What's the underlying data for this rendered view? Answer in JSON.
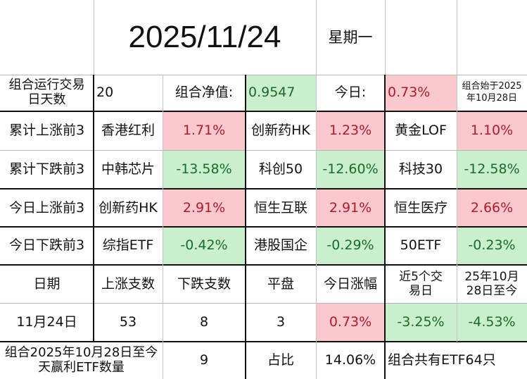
{
  "header": {
    "date": "2025/11/24",
    "weekday": "星期一"
  },
  "summary": {
    "days_label": "组合运行交易日天数",
    "days_value": "20",
    "nav_label": "组合净值:",
    "nav_value": "0.9547",
    "today_label": "今日:",
    "today_value": "0.73%",
    "start_note": "组合始于2025年10月28日"
  },
  "rankings": [
    {
      "label": "累计上涨前3",
      "items": [
        {
          "name": "香港红利",
          "value": "1.71%"
        },
        {
          "name": "创新药HK",
          "value": "1.23%"
        },
        {
          "name": "黄金LOF",
          "value": "1.10%"
        }
      ]
    },
    {
      "label": "累计下跌前3",
      "items": [
        {
          "name": "中韩芯片",
          "value": "-13.58%"
        },
        {
          "name": "科创50",
          "value": "-12.60%"
        },
        {
          "name": "科技30",
          "value": "-12.58%"
        }
      ]
    },
    {
      "label": "今日上涨前3",
      "items": [
        {
          "name": "创新药HK",
          "value": "2.91%"
        },
        {
          "name": "恒生互联",
          "value": "2.91%"
        },
        {
          "name": "恒生医疗",
          "value": "2.66%"
        }
      ]
    },
    {
      "label": "今日下跌前3",
      "items": [
        {
          "name": "综指ETF",
          "value": "-0.42%"
        },
        {
          "name": "港股国企",
          "value": "-0.29%"
        },
        {
          "name": "50ETF",
          "value": "-0.23%"
        }
      ]
    }
  ],
  "stats": {
    "headers": [
      "日期",
      "上涨支数",
      "下跌支数",
      "平盘",
      "今日涨幅",
      "近5个交易日",
      "25年10月28日至今"
    ],
    "row": [
      "11月24日",
      "53",
      "8",
      "3",
      "0.73%",
      "-3.25%",
      "-4.53%"
    ]
  },
  "footer": {
    "profit_label": "组合2025年10月28日至今天赢利ETF数量",
    "profit_count": "9",
    "ratio_label": "占比",
    "ratio_value": "14.06%",
    "total_note": "组合共有ETF64只"
  },
  "colors": {
    "up_bg": "#fbc8ce",
    "up_text": "#b01a2a",
    "down_bg": "#c9efcd",
    "down_text": "#1a6b2a"
  }
}
